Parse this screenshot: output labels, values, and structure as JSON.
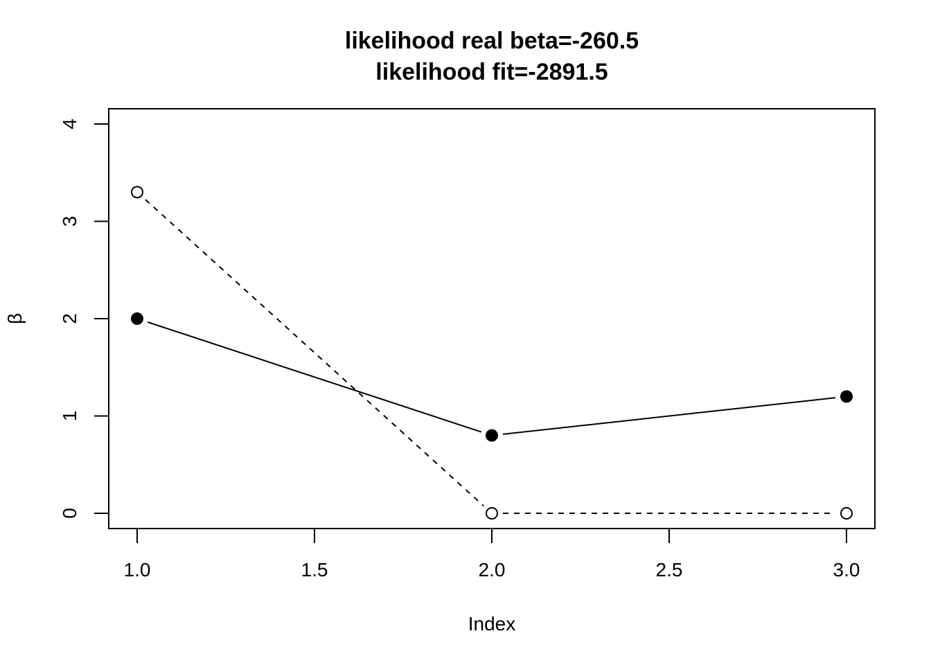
{
  "chart_data": {
    "type": "line",
    "title": "likelihood real beta=-260.5",
    "subtitle": "likelihood fit=-2891.5",
    "xlabel": "Index",
    "ylabel": "β",
    "xlim": [
      1,
      3
    ],
    "ylim": [
      0,
      4
    ],
    "x_ticks": [
      "1.0",
      "1.5",
      "2.0",
      "2.5",
      "3.0"
    ],
    "y_ticks": [
      "0",
      "1",
      "2",
      "3",
      "4"
    ],
    "grid": false,
    "x": [
      1,
      2,
      3
    ],
    "series": [
      {
        "values": [
          2.0,
          0.8,
          1.2
        ],
        "line_style": "solid",
        "marker": "filled-circle",
        "color": "#000000"
      },
      {
        "values": [
          3.3,
          0.0,
          0.0
        ],
        "line_style": "dashed",
        "marker": "open-circle",
        "color": "#000000"
      }
    ]
  }
}
